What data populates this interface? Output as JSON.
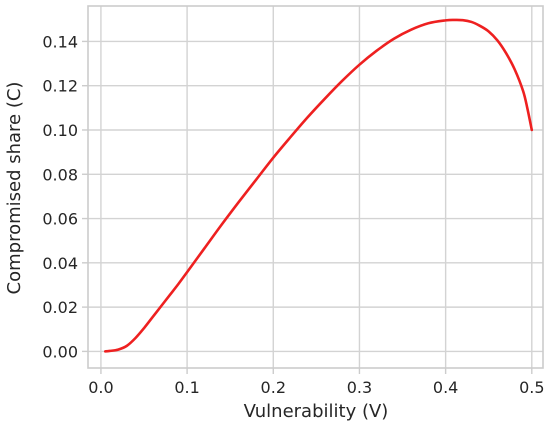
{
  "chart_data": {
    "type": "line",
    "title": "",
    "xlabel": "Vulnerability (V)",
    "ylabel": "Compromised share (C)",
    "xlim": [
      -0.015,
      0.513
    ],
    "ylim": [
      -0.0075,
      0.156
    ],
    "grid": true,
    "x_ticks": [
      0.0,
      0.1,
      0.2,
      0.3,
      0.4,
      0.5
    ],
    "x_tick_labels": [
      "0.0",
      "0.1",
      "0.2",
      "0.3",
      "0.4",
      "0.5"
    ],
    "y_ticks": [
      0.0,
      0.02,
      0.04,
      0.06,
      0.08,
      0.1,
      0.12,
      0.14
    ],
    "y_tick_labels": [
      "0.00",
      "0.02",
      "0.04",
      "0.06",
      "0.08",
      "0.10",
      "0.12",
      "0.14"
    ],
    "series": [
      {
        "color": "#ee2020",
        "x": [
          0.005,
          0.01,
          0.02,
          0.03,
          0.04,
          0.05,
          0.06,
          0.07,
          0.08,
          0.09,
          0.1,
          0.12,
          0.14,
          0.16,
          0.18,
          0.2,
          0.22,
          0.24,
          0.26,
          0.28,
          0.3,
          0.32,
          0.34,
          0.36,
          0.38,
          0.4,
          0.41,
          0.42,
          0.43,
          0.44,
          0.45,
          0.46,
          0.47,
          0.48,
          0.49,
          0.495,
          0.5
        ],
        "y": [
          0.0,
          0.0002,
          0.0008,
          0.0025,
          0.006,
          0.0105,
          0.0155,
          0.0205,
          0.0255,
          0.0305,
          0.0358,
          0.0465,
          0.0572,
          0.0675,
          0.0775,
          0.0875,
          0.0968,
          0.1058,
          0.1142,
          0.1222,
          0.1295,
          0.1358,
          0.1412,
          0.1453,
          0.1482,
          0.1495,
          0.1497,
          0.1496,
          0.1488,
          0.147,
          0.1445,
          0.1405,
          0.1348,
          0.1275,
          0.1175,
          0.1095,
          0.1
        ]
      }
    ]
  }
}
